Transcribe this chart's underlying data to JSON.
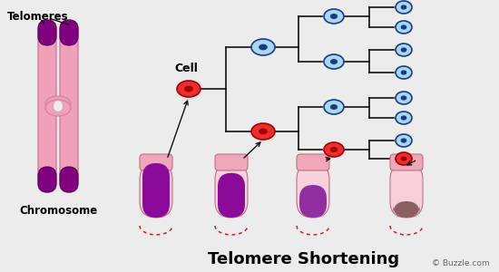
{
  "bg_color": "#ececec",
  "title": "Telomere Shortening",
  "title_fontsize": 13,
  "copyright": "© Buzzle.com",
  "chromosome_label": "Chromosome",
  "telomeres_label": "Telomeres",
  "cell_label": "Cell",
  "chrom_color_body": "#f0a0b8",
  "chrom_color_telomere": "#800080",
  "cell_red_fill": "#e83030",
  "cell_red_dark": "#aa0000",
  "cell_blue_fill": "#a8d8f0",
  "cell_blue_dark": "#1a3a8a",
  "tube_body_color": "#f0b0c0",
  "tube_top_color": "#f0a8b8",
  "tube_content_colors": [
    "#8b0a9a",
    "#8b0a9a",
    "#9030a0",
    "#8b6060"
  ],
  "tube_dashed_color": "#cc2222",
  "line_color": "#111111",
  "arrow_color": "#111111"
}
